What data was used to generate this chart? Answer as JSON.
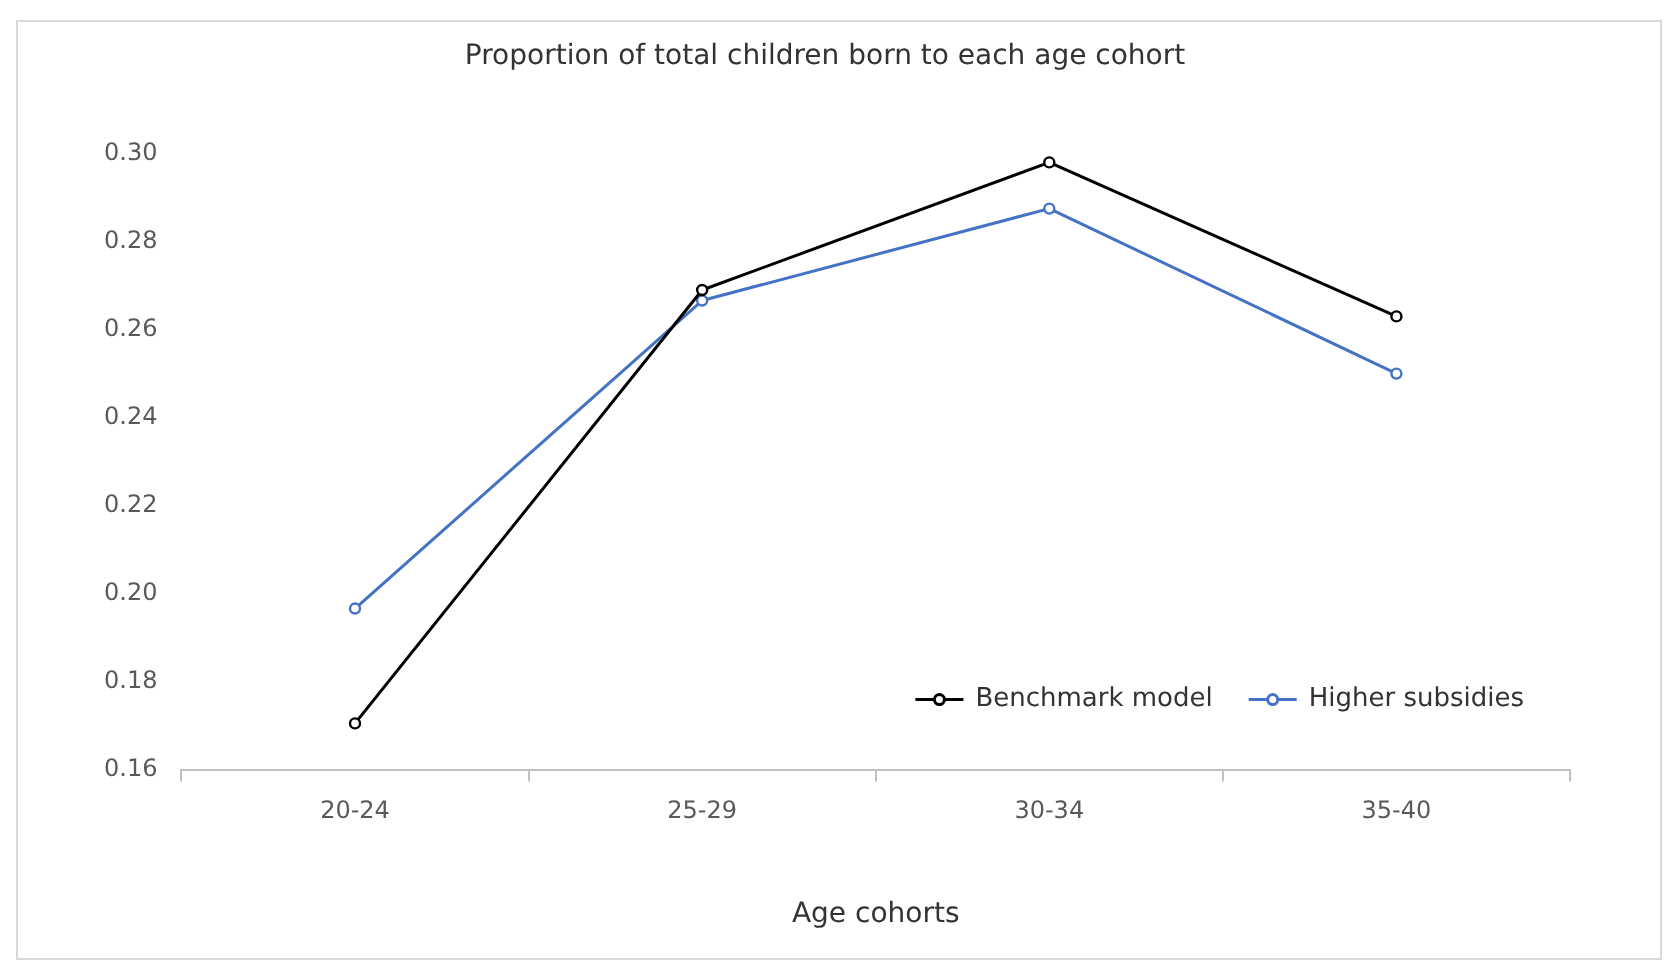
{
  "chart_data": {
    "type": "line",
    "title": "Proportion of total children born to each age cohort",
    "xlabel": "Age cohorts",
    "categories": [
      "20-24",
      "25-29",
      "30-34",
      "35-40"
    ],
    "series": [
      {
        "name": "Benchmark model",
        "color": "#000000",
        "values": [
          0.1705,
          0.269,
          0.298,
          0.263
        ]
      },
      {
        "name": "Higher subsidies",
        "color": "#4472c4",
        "values": [
          0.1966,
          0.2666,
          0.2875,
          0.25
        ]
      }
    ],
    "ylim": [
      0.16,
      0.3
    ],
    "yticks": [
      {
        "value": 0.16,
        "label": "0.16"
      },
      {
        "value": 0.18,
        "label": "0.18"
      },
      {
        "value": 0.2,
        "label": "0.20"
      },
      {
        "value": 0.22,
        "label": "0.22"
      },
      {
        "value": 0.24,
        "label": "0.24"
      },
      {
        "value": 0.26,
        "label": "0.26"
      },
      {
        "value": 0.28,
        "label": "0.28"
      },
      {
        "value": 0.3,
        "label": "0.30"
      }
    ],
    "grid": false,
    "legend": "bottom right",
    "marker": "circle",
    "line_style": "solid"
  }
}
